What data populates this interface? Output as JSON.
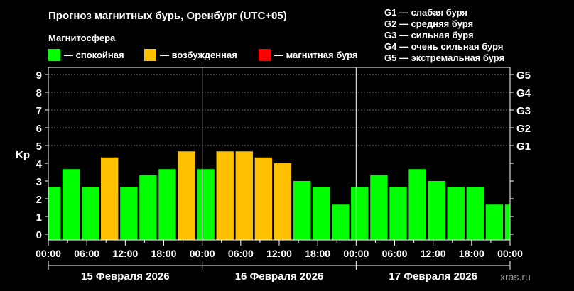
{
  "title": "Прогноз магнитных бурь, Оренбург (UTC+05)",
  "legend": {
    "heading": "Магнитосфера",
    "items": [
      {
        "label": "— спокойная",
        "color": "#00ff00"
      },
      {
        "label": "— возбужденная",
        "color": "#ffc000"
      },
      {
        "label": "— магнитная буря",
        "color": "#ff0000"
      }
    ]
  },
  "g_legend": [
    "G1 — слабая буря",
    "G2 — средняя буря",
    "G3 — сильная буря",
    "G4 — очень сильная буря",
    "G5 — экстремальная буря"
  ],
  "watermark": "xras.ru",
  "chart_data": {
    "type": "bar",
    "ylabel": "Kp",
    "ylim": [
      0,
      9
    ],
    "yticks": [
      0,
      1,
      2,
      3,
      4,
      5,
      6,
      7,
      8,
      9
    ],
    "right_ticks": [
      {
        "value": 5,
        "label": "G1"
      },
      {
        "value": 6,
        "label": "G2"
      },
      {
        "value": 7,
        "label": "G3"
      },
      {
        "value": 8,
        "label": "G4"
      },
      {
        "value": 9,
        "label": "G5"
      }
    ],
    "xticks": [
      "00:00",
      "06:00",
      "12:00",
      "18:00",
      "00:00",
      "06:00",
      "12:00",
      "18:00",
      "00:00",
      "06:00",
      "12:00",
      "18:00",
      "00:00"
    ],
    "days": [
      "15 Февраля 2026",
      "16 Февраля 2026",
      "17 Февраля 2026"
    ],
    "grid": "dashed above Kp 5",
    "values": [
      2.67,
      3.67,
      2.67,
      4.33,
      2.67,
      3.33,
      3.67,
      4.67,
      3.67,
      4.67,
      4.67,
      4.33,
      4.0,
      3.0,
      2.67,
      1.67,
      2.67,
      3.33,
      2.67,
      3.67,
      3.0,
      2.67,
      2.67,
      1.67,
      1.67
    ],
    "colors": {
      "quiet": "#00ff00",
      "active": "#ffc000",
      "storm": "#ff0000"
    }
  }
}
